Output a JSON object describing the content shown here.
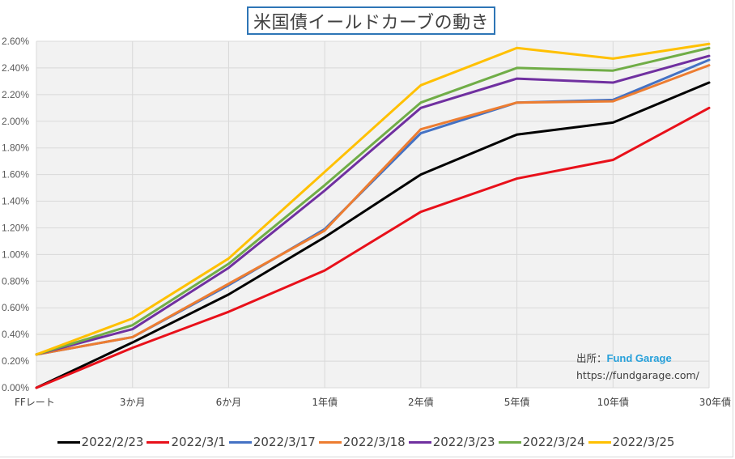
{
  "chart_data": {
    "type": "line",
    "title": "米国債イールドカーブの動き",
    "xlabel": "",
    "ylabel": "",
    "categories": [
      "FFレート",
      "3か月",
      "6か月",
      "1年債",
      "2年債",
      "5年債",
      "10年債",
      "30年債"
    ],
    "ylim": [
      0,
      2.6
    ],
    "ystep": 0.2,
    "ytick_labels": [
      "0.00%",
      "0.20%",
      "0.40%",
      "0.60%",
      "0.80%",
      "1.00%",
      "1.20%",
      "1.40%",
      "1.60%",
      "1.80%",
      "2.00%",
      "2.20%",
      "2.40%",
      "2.60%"
    ],
    "grid": true,
    "legend_position": "bottom",
    "series": [
      {
        "name": "2022/2/23",
        "color": "#000000",
        "values": [
          0.0,
          0.34,
          0.7,
          1.13,
          1.6,
          1.9,
          1.99,
          2.29
        ]
      },
      {
        "name": "2022/3/1",
        "color": "#e8101a",
        "values": [
          0.0,
          0.3,
          0.57,
          0.88,
          1.32,
          1.57,
          1.71,
          2.1
        ]
      },
      {
        "name": "2022/3/17",
        "color": "#4472c4",
        "values": [
          0.25,
          0.38,
          0.77,
          1.19,
          1.91,
          2.14,
          2.16,
          2.46
        ]
      },
      {
        "name": "2022/3/18",
        "color": "#ed7d31",
        "values": [
          0.25,
          0.38,
          0.78,
          1.18,
          1.94,
          2.14,
          2.15,
          2.42
        ]
      },
      {
        "name": "2022/3/23",
        "color": "#7030a0",
        "values": [
          0.25,
          0.44,
          0.9,
          1.48,
          2.1,
          2.32,
          2.29,
          2.49
        ]
      },
      {
        "name": "2022/3/24",
        "color": "#70ad47",
        "values": [
          0.25,
          0.47,
          0.93,
          1.52,
          2.14,
          2.4,
          2.38,
          2.55
        ]
      },
      {
        "name": "2022/3/25",
        "color": "#ffc000",
        "values": [
          0.25,
          0.52,
          0.97,
          1.62,
          2.27,
          2.55,
          2.47,
          2.58
        ]
      }
    ],
    "annotations": {
      "source_label": "出所：",
      "source_brand": "Fund Garage",
      "source_url": "https://fundgarage.com/"
    }
  }
}
